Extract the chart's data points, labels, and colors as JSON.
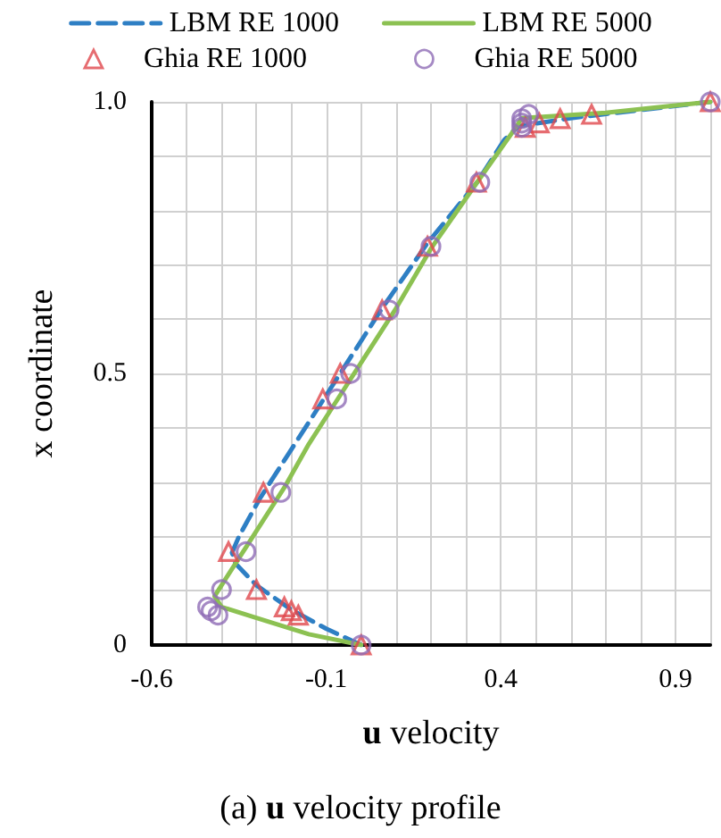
{
  "chart_data": {
    "type": "line",
    "title": "(a) u velocity profile",
    "xlabel": "u velocity",
    "ylabel": "x coordinate",
    "xlim": [
      -0.6,
      1.0
    ],
    "ylim": [
      0,
      1.0
    ],
    "xticks": [
      -0.6,
      {
        "value": -0.5,
        "label": null
      },
      {
        "value": -0.4,
        "label": null
      },
      {
        "value": -0.3,
        "label": null
      },
      {
        "value": -0.2,
        "label": null
      },
      -0.1,
      {
        "value": 0,
        "label": null
      },
      {
        "value": 0.1,
        "label": null
      },
      {
        "value": 0.2,
        "label": null
      },
      {
        "value": 0.3,
        "label": null
      },
      0.4,
      {
        "value": 0.5,
        "label": null
      },
      {
        "value": 0.6,
        "label": null
      },
      {
        "value": 0.7,
        "label": null
      },
      {
        "value": 0.8,
        "label": null
      },
      0.9,
      {
        "value": 1.0,
        "label": null
      }
    ],
    "yticks": [
      0,
      {
        "value": 0.1,
        "label": null
      },
      {
        "value": 0.2,
        "label": null
      },
      {
        "value": 0.3,
        "label": null
      },
      {
        "value": 0.4,
        "label": null
      },
      0.5,
      {
        "value": 0.6,
        "label": null
      },
      {
        "value": 0.7,
        "label": null
      },
      {
        "value": 0.8,
        "label": null
      },
      {
        "value": 0.9,
        "label": null
      },
      {
        "value": 1.0,
        "label": "1.0"
      }
    ],
    "grid": true,
    "legend": "top",
    "series": [
      {
        "name": "LBM RE 1000",
        "color": "#2e7fc4",
        "line_style": "dashed",
        "marker": "none",
        "x": [
          0,
          -0.1,
          -0.2,
          -0.3,
          -0.36,
          -0.37,
          -0.35,
          -0.29,
          -0.2,
          -0.11,
          -0.05,
          0.06,
          0.19,
          0.33,
          0.41,
          0.45,
          0.6,
          0.8,
          1.0
        ],
        "values": [
          0,
          0.03,
          0.065,
          0.11,
          0.15,
          0.17,
          0.2,
          0.27,
          0.36,
          0.45,
          0.51,
          0.62,
          0.74,
          0.85,
          0.93,
          0.955,
          0.97,
          0.985,
          1.0
        ]
      },
      {
        "name": "LBM RE 5000",
        "color": "#8cc152",
        "line_style": "solid",
        "marker": "none",
        "x": [
          0,
          -0.15,
          -0.3,
          -0.4,
          -0.42,
          -0.38,
          -0.33,
          -0.28,
          -0.22,
          -0.15,
          -0.08,
          0.0,
          0.1,
          0.2,
          0.33,
          0.44,
          0.46,
          0.7,
          1.0
        ],
        "values": [
          0,
          0.02,
          0.05,
          0.07,
          0.09,
          0.13,
          0.18,
          0.23,
          0.29,
          0.37,
          0.44,
          0.52,
          0.62,
          0.73,
          0.85,
          0.95,
          0.97,
          0.98,
          1.0
        ]
      },
      {
        "name": "Ghia RE 1000",
        "type": "scatter",
        "color": "#e0474c",
        "marker": "triangle",
        "x": [
          1.0,
          0.66,
          0.57,
          0.51,
          0.47,
          0.33,
          0.19,
          0.06,
          -0.06,
          -0.11,
          -0.28,
          -0.38,
          -0.3,
          -0.22,
          -0.2,
          -0.18,
          0
        ],
        "values": [
          1.0,
          0.977,
          0.969,
          0.961,
          0.953,
          0.852,
          0.734,
          0.617,
          0.5,
          0.453,
          0.281,
          0.172,
          0.102,
          0.07,
          0.063,
          0.055,
          0
        ]
      },
      {
        "name": "Ghia RE 5000",
        "type": "scatter",
        "color": "#8e6bb5",
        "marker": "circle",
        "x": [
          1.0,
          0.48,
          0.46,
          0.46,
          0.46,
          0.34,
          0.2,
          0.08,
          -0.03,
          -0.07,
          -0.23,
          -0.33,
          -0.4,
          -0.44,
          -0.43,
          -0.41,
          0
        ],
        "values": [
          1.0,
          0.977,
          0.969,
          0.961,
          0.953,
          0.852,
          0.734,
          0.617,
          0.5,
          0.453,
          0.281,
          0.172,
          0.102,
          0.07,
          0.063,
          0.055,
          0
        ]
      }
    ]
  }
}
